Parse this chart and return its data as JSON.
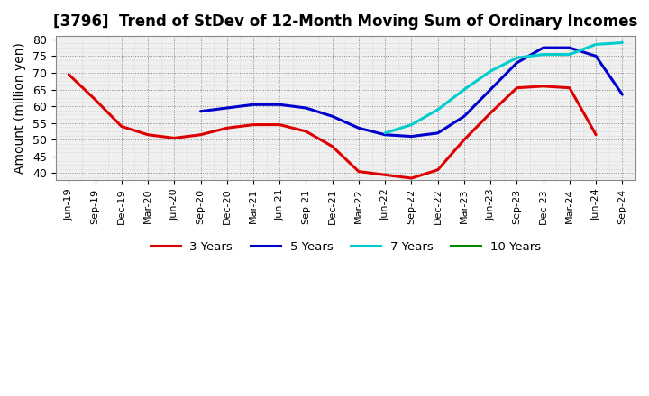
{
  "title": "[3796]  Trend of StDev of 12-Month Moving Sum of Ordinary Incomes",
  "ylabel": "Amount (million yen)",
  "ylim": [
    38,
    81
  ],
  "yticks": [
    40,
    45,
    50,
    55,
    60,
    65,
    70,
    75,
    80
  ],
  "background_color": "#ffffff",
  "plot_bg_color": "#f0f0f0",
  "grid_color": "#aaaaaa",
  "title_fontsize": 12,
  "ylabel_fontsize": 10,
  "x_labels": [
    "Jun-19",
    "Sep-19",
    "Dec-19",
    "Mar-20",
    "Jun-20",
    "Sep-20",
    "Dec-20",
    "Mar-21",
    "Jun-21",
    "Sep-21",
    "Dec-21",
    "Mar-22",
    "Jun-22",
    "Sep-22",
    "Dec-22",
    "Mar-23",
    "Jun-23",
    "Sep-23",
    "Dec-23",
    "Mar-24",
    "Jun-24",
    "Sep-24"
  ],
  "series": {
    "3 Years": {
      "color": "#dd0000",
      "linewidth": 2.2,
      "data": [
        69.5,
        62.0,
        54.0,
        51.5,
        50.5,
        51.5,
        53.5,
        54.5,
        54.5,
        52.5,
        48.0,
        40.5,
        39.5,
        38.5,
        41.0,
        50.0,
        58.0,
        65.5,
        66.0,
        65.5,
        51.5,
        null
      ]
    },
    "5 Years": {
      "color": "#0000cc",
      "linewidth": 2.2,
      "data": [
        null,
        null,
        null,
        null,
        null,
        58.5,
        59.5,
        60.5,
        60.5,
        59.5,
        57.0,
        53.5,
        51.5,
        51.0,
        52.0,
        57.0,
        65.0,
        73.0,
        77.5,
        77.5,
        75.0,
        63.5
      ]
    },
    "7 Years": {
      "color": "#00cccc",
      "linewidth": 2.2,
      "data": [
        null,
        null,
        null,
        null,
        null,
        null,
        null,
        null,
        null,
        null,
        null,
        null,
        52.0,
        54.5,
        59.0,
        65.0,
        70.5,
        74.5,
        75.5,
        75.5,
        78.5,
        79.0
      ]
    },
    "10 Years": {
      "color": "#008800",
      "linewidth": 2.2,
      "data": [
        null,
        null,
        null,
        null,
        null,
        null,
        null,
        null,
        null,
        null,
        null,
        null,
        null,
        null,
        null,
        null,
        null,
        null,
        null,
        null,
        null,
        null
      ]
    }
  },
  "legend_entries": [
    "3 Years",
    "5 Years",
    "7 Years",
    "10 Years"
  ],
  "legend_colors": [
    "#dd0000",
    "#0000cc",
    "#00cccc",
    "#008800"
  ]
}
